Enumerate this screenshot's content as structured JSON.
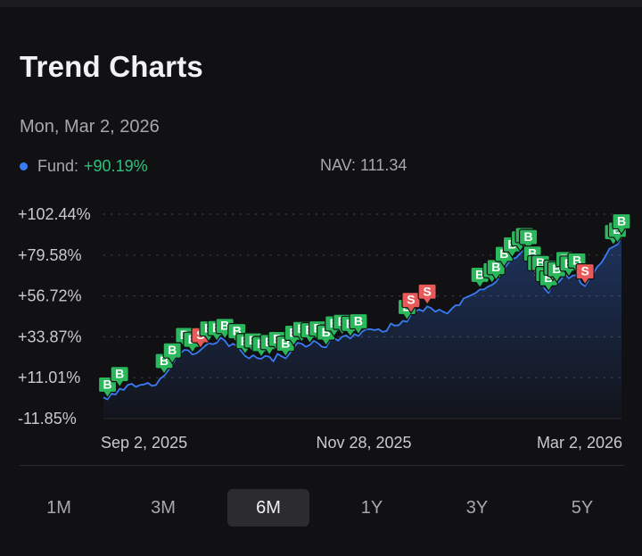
{
  "title": "Trend Charts",
  "date": "Mon, Mar 2, 2026",
  "legend": {
    "fund_label": "Fund:",
    "fund_change": "+90.19%",
    "nav": "NAV: 111.34"
  },
  "colors": {
    "line": "#3a7bf5",
    "buy": "#2bb85c",
    "sell": "#e85a5a",
    "positive": "#2ec27e"
  },
  "tabs": [
    "1M",
    "3M",
    "6M",
    "1Y",
    "3Y",
    "5Y"
  ],
  "active_tab": "6M",
  "chart_data": {
    "type": "line",
    "y_ticks": [
      "+102.44%",
      "+79.58%",
      "+56.72%",
      "+33.87%",
      "+11.01%",
      "-11.85%"
    ],
    "x_ticks": [
      "Sep 2, 2025",
      "Nov 28, 2025",
      "Mar 2, 2026"
    ],
    "ylim": [
      -11.85,
      102.44
    ],
    "grid": true,
    "series": [
      {
        "values": [
          0.0,
          -1.1,
          2.1,
          1.6,
          4.8,
          4.1,
          6.9,
          7.6,
          5.8,
          6.9,
          7.2,
          8.1,
          6.4,
          6.9,
          10.4,
          12.1,
          15.0,
          18.0,
          22.6,
          24.4,
          26.6,
          26.3,
          24.0,
          24.7,
          26.5,
          28.6,
          30.3,
          29.7,
          30.5,
          33.4,
          31.7,
          28.6,
          30.0,
          28.8,
          26.0,
          23.2,
          21.8,
          23.6,
          22.0,
          21.6,
          23.2,
          22.7,
          20.1,
          24.4,
          23.0,
          21.8,
          24.5,
          27.9,
          30.5,
          30.0,
          28.3,
          29.3,
          31.6,
          30.3,
          28.3,
          28.0,
          32.2,
          33.1,
          31.7,
          34.0,
          34.6,
          32.9,
          35.4,
          34.3,
          36.9,
          38.1,
          38.1,
          37.6,
          38.1,
          36.6,
          37.2,
          41.3,
          40.1,
          40.4,
          42.8,
          42.3,
          46.2,
          48.1,
          49.1,
          48.2,
          50.9,
          49.9,
          47.9,
          49.1,
          47.8,
          46.9,
          49.5,
          51.5,
          51.6,
          55.4,
          56.2,
          57.3,
          58.4,
          60.3,
          60.3,
          61.9,
          62.9,
          64.6,
          68.0,
          72.0,
          75.0,
          77.3,
          78.2,
          80.7,
          82.5,
          81.4,
          72.2,
          66.8,
          66.9,
          60.7,
          58.4,
          64.3,
          63.4,
          65.7,
          69.1,
          66.6,
          68.2,
          68.3,
          63.7,
          62.2,
          66.2,
          69.1,
          73.0,
          75.2,
          78.8,
          83.1,
          84.2,
          85.5,
          90.2
        ]
      }
    ],
    "markers": [
      {
        "i": 1,
        "t": "B"
      },
      {
        "i": 4,
        "t": "B"
      },
      {
        "i": 15,
        "t": "B"
      },
      {
        "i": 17,
        "t": "B"
      },
      {
        "i": 20,
        "t": "B"
      },
      {
        "i": 22,
        "t": "B"
      },
      {
        "i": 24,
        "t": "S"
      },
      {
        "i": 26,
        "t": "B"
      },
      {
        "i": 28,
        "t": "B"
      },
      {
        "i": 30,
        "t": "B"
      },
      {
        "i": 33,
        "t": "B"
      },
      {
        "i": 35,
        "t": "B"
      },
      {
        "i": 37,
        "t": "B"
      },
      {
        "i": 39,
        "t": "B"
      },
      {
        "i": 41,
        "t": "B"
      },
      {
        "i": 43,
        "t": "B"
      },
      {
        "i": 45,
        "t": "B"
      },
      {
        "i": 47,
        "t": "B"
      },
      {
        "i": 49,
        "t": "B"
      },
      {
        "i": 51,
        "t": "B"
      },
      {
        "i": 53,
        "t": "B"
      },
      {
        "i": 55,
        "t": "B"
      },
      {
        "i": 57,
        "t": "B"
      },
      {
        "i": 59,
        "t": "B"
      },
      {
        "i": 61,
        "t": "B"
      },
      {
        "i": 63,
        "t": "B"
      },
      {
        "i": 75,
        "t": "B"
      },
      {
        "i": 76,
        "t": "S"
      },
      {
        "i": 80,
        "t": "S"
      },
      {
        "i": 93,
        "t": "B"
      },
      {
        "i": 96,
        "t": "B"
      },
      {
        "i": 97,
        "t": "B"
      },
      {
        "i": 99,
        "t": "B"
      },
      {
        "i": 101,
        "t": "B"
      },
      {
        "i": 103,
        "t": "B"
      },
      {
        "i": 104,
        "t": "B"
      },
      {
        "i": 105,
        "t": "B"
      },
      {
        "i": 106,
        "t": "B"
      },
      {
        "i": 107,
        "t": "B"
      },
      {
        "i": 108,
        "t": "B"
      },
      {
        "i": 109,
        "t": "B"
      },
      {
        "i": 110,
        "t": "B"
      },
      {
        "i": 111,
        "t": "B"
      },
      {
        "i": 112,
        "t": "B"
      },
      {
        "i": 114,
        "t": "B"
      },
      {
        "i": 115,
        "t": "B"
      },
      {
        "i": 117,
        "t": "B"
      },
      {
        "i": 119,
        "t": "S"
      },
      {
        "i": 126,
        "t": "B"
      },
      {
        "i": 127,
        "t": "B"
      },
      {
        "i": 128,
        "t": "B"
      },
      {
        "i": 129,
        "t": "B"
      },
      {
        "i": 130,
        "t": "S"
      }
    ]
  }
}
